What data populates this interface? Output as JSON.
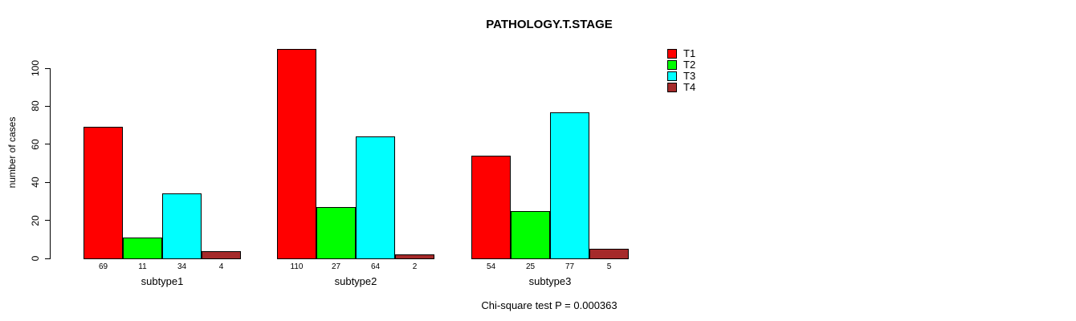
{
  "title": "PATHOLOGY.T.STAGE",
  "ylabel": "number of cases",
  "footer": "Chi-square test P = 0.000363",
  "chart_data": {
    "type": "bar",
    "title": "PATHOLOGY.T.STAGE",
    "ylabel": "number of cases",
    "xlabel": "",
    "categories": [
      "subtype1",
      "subtype2",
      "subtype3"
    ],
    "series": [
      {
        "name": "T1",
        "color": "#FF0000",
        "values": [
          69,
          110,
          54
        ]
      },
      {
        "name": "T2",
        "color": "#00FF00",
        "values": [
          11,
          27,
          25
        ]
      },
      {
        "name": "T3",
        "color": "#00FFFF",
        "values": [
          34,
          64,
          77
        ]
      },
      {
        "name": "T4",
        "color": "#A52A2A",
        "values": [
          4,
          2,
          5
        ]
      }
    ],
    "bar_value_labels": [
      [
        69,
        11,
        34,
        4
      ],
      [
        110,
        27,
        64,
        2
      ],
      [
        54,
        25,
        77,
        5
      ]
    ],
    "yticks": [
      0,
      20,
      40,
      60,
      80,
      100
    ],
    "ylim": [
      0,
      100
    ],
    "grid": false,
    "legend_position": "top-right",
    "annotation": "Chi-square test P = 0.000363"
  }
}
